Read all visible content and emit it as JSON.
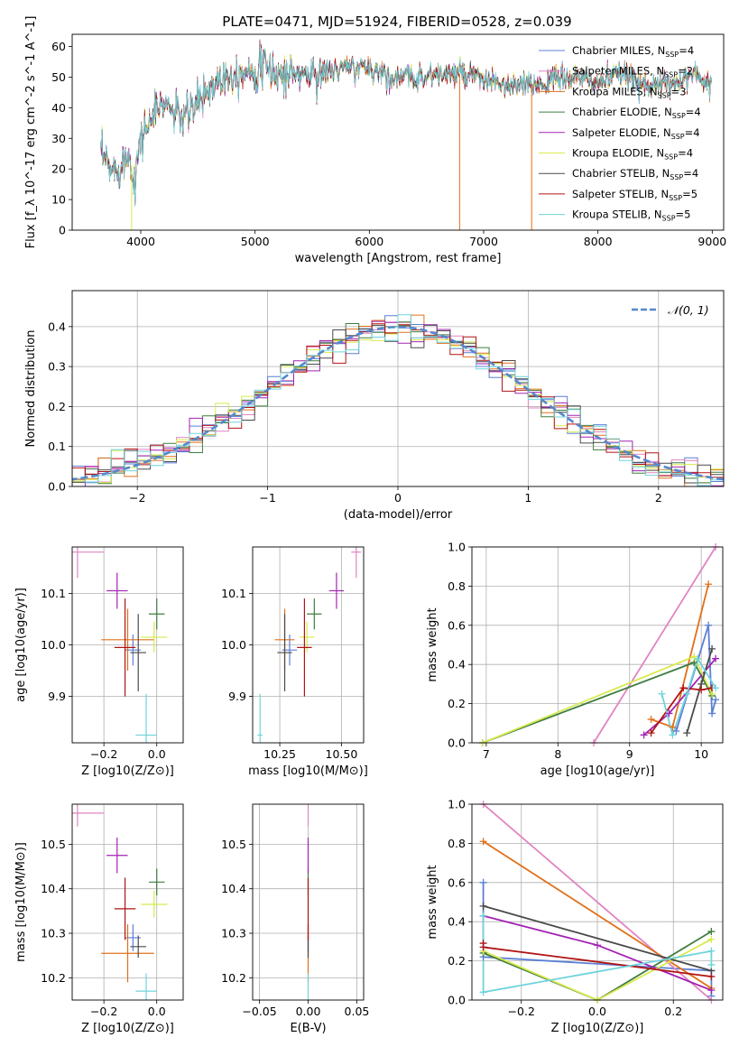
{
  "figure": {
    "title": "PLATE=0471, MJD=51924, FIBERID=0528, z=0.039"
  },
  "colors": {
    "Chabrier MILES": "#5b7fd6",
    "Salpeter MILES": "#e184c1",
    "Kroupa MILES": "#e0701a",
    "Chabrier ELODIE": "#3f7d3f",
    "Salpeter ELODIE": "#a322b4",
    "Kroupa ELODIE": "#d8ea4e",
    "Chabrier STELIB": "#4a4a4a",
    "Salpeter STELIB": "#b01414",
    "Kroupa STELIB": "#6fd3dc"
  },
  "chart_data": [
    {
      "id": "spectrum",
      "type": "line",
      "title": "PLATE=0471, MJD=51924, FIBERID=0528, z=0.039",
      "xlabel": "wavelength [Angstrom, rest frame]",
      "ylabel": "Flux [f_λ 10^-17 erg cm^-2 s^-1 A^-1]",
      "xlim": [
        3400,
        9100
      ],
      "ylim": [
        0,
        64
      ],
      "xticks": [
        4000,
        5000,
        6000,
        7000,
        8000,
        9000
      ],
      "yticks": [
        0,
        10,
        20,
        30,
        40,
        50,
        60
      ],
      "grid": false,
      "legend_position": "upper right",
      "legend": [
        {
          "model": "Chabrier MILES",
          "nssp": "4"
        },
        {
          "model": "Salpeter MILES",
          "nssp": "2"
        },
        {
          "model": "Kroupa MILES",
          "nssp": "3"
        },
        {
          "model": "Chabrier ELODIE",
          "nssp": "4"
        },
        {
          "model": "Salpeter ELODIE",
          "nssp": "4"
        },
        {
          "model": "Kroupa ELODIE",
          "nssp": "4"
        },
        {
          "model": "Chabrier STELIB",
          "nssp": "4"
        },
        {
          "model": "Salpeter STELIB",
          "nssp": "5"
        },
        {
          "model": "Kroupa STELIB",
          "nssp": "5"
        }
      ],
      "continuum": {
        "x": [
          3650,
          3700,
          3750,
          3800,
          3850,
          3900,
          3950,
          4000,
          4100,
          4200,
          4300,
          4400,
          4500,
          4700,
          4900,
          5100,
          5200,
          5500,
          5800,
          6000,
          6200,
          6400,
          6600,
          6800,
          7000,
          7100,
          7200,
          7400,
          7600,
          7800,
          8000,
          8200,
          8400,
          8600,
          8800,
          9000
        ],
        "y": [
          25,
          22,
          19,
          21,
          23,
          24,
          17,
          30,
          37,
          42,
          38,
          37,
          42,
          50,
          52,
          53,
          51,
          51,
          53,
          53,
          50,
          50,
          51,
          51,
          49,
          48,
          47,
          47,
          49,
          50,
          48,
          51,
          48,
          47,
          51,
          48
        ]
      },
      "dropouts": [
        {
          "model": "Kroupa ELODIE",
          "x": 3920,
          "y_to": 0
        },
        {
          "model": "Kroupa MILES",
          "x": 6790,
          "y_to": 0
        },
        {
          "model": "Kroupa MILES",
          "x": 7420,
          "y_to": 0
        }
      ]
    },
    {
      "id": "residual-hist",
      "type": "line",
      "xlabel": "(data-model)/error",
      "ylabel": "Normed distribution",
      "xlim": [
        -2.5,
        2.5
      ],
      "ylim": [
        0,
        0.49
      ],
      "xticks": [
        -2,
        -1,
        0,
        1,
        2
      ],
      "yticks": [
        0.0,
        0.1,
        0.2,
        0.3,
        0.4
      ],
      "grid": true,
      "legend_position": "upper right",
      "legend": [
        {
          "label": "𝒩(0, 1)",
          "style": "dashed",
          "color": "#5588cc"
        }
      ],
      "bin_width": 0.1,
      "reference_curve": "normal(0,1) pdf"
    },
    {
      "id": "age-vs-Z",
      "type": "scatter",
      "xlabel": "Z [log10(Z/Z⊙)]",
      "ylabel": "age  [log10(age/yr)]",
      "xlim": [
        -0.32,
        0.1
      ],
      "ylim": [
        9.81,
        10.19
      ],
      "xticks": [
        -0.2,
        0.0
      ],
      "yticks": [
        9.9,
        10.0,
        10.1
      ],
      "grid": true,
      "points": [
        {
          "model": "Chabrier MILES",
          "x": -0.09,
          "y": 9.99,
          "xerr": 0.03,
          "yerr": 0.03
        },
        {
          "model": "Salpeter MILES",
          "x": -0.3,
          "y": 10.18,
          "xerr": 0.1,
          "yerr": 0.05
        },
        {
          "model": "Kroupa MILES",
          "x": -0.11,
          "y": 10.01,
          "xerr": 0.1,
          "yerr": 0.06
        },
        {
          "model": "Chabrier ELODIE",
          "x": 0.0,
          "y": 10.06,
          "xerr": 0.03,
          "yerr": 0.03
        },
        {
          "model": "Salpeter ELODIE",
          "x": -0.15,
          "y": 10.105,
          "xerr": 0.04,
          "yerr": 0.035
        },
        {
          "model": "Kroupa ELODIE",
          "x": -0.01,
          "y": 10.015,
          "xerr": 0.05,
          "yerr": 0.03
        },
        {
          "model": "Chabrier STELIB",
          "x": -0.07,
          "y": 9.985,
          "xerr": 0.03,
          "yerr": 0.075
        },
        {
          "model": "Salpeter STELIB",
          "x": -0.12,
          "y": 9.995,
          "xerr": 0.04,
          "yerr": 0.095
        },
        {
          "model": "Kroupa STELIB",
          "x": -0.04,
          "y": 9.825,
          "xerr": 0.04,
          "yerr": 0.08
        }
      ]
    },
    {
      "id": "age-vs-mass",
      "type": "scatter",
      "xlabel": "mass [log10(M/M⊙)]",
      "ylabel": "",
      "xlim": [
        10.14,
        10.59
      ],
      "ylim": [
        9.81,
        10.19
      ],
      "xticks": [
        10.25,
        10.5
      ],
      "yticks": [
        9.9,
        10.0,
        10.1
      ],
      "grid": true,
      "points": [
        {
          "model": "Chabrier MILES",
          "x": 10.29,
          "y": 9.99,
          "xerr": 0.03,
          "yerr": 0.03
        },
        {
          "model": "Salpeter MILES",
          "x": 10.56,
          "y": 10.18,
          "xerr": 0.02,
          "yerr": 0.05
        },
        {
          "model": "Kroupa MILES",
          "x": 10.27,
          "y": 10.01,
          "xerr": 0.04,
          "yerr": 0.06
        },
        {
          "model": "Chabrier ELODIE",
          "x": 10.39,
          "y": 10.06,
          "xerr": 0.03,
          "yerr": 0.03
        },
        {
          "model": "Salpeter ELODIE",
          "x": 10.48,
          "y": 10.105,
          "xerr": 0.03,
          "yerr": 0.035
        },
        {
          "model": "Kroupa ELODIE",
          "x": 10.36,
          "y": 10.015,
          "xerr": 0.03,
          "yerr": 0.03
        },
        {
          "model": "Chabrier STELIB",
          "x": 10.27,
          "y": 9.985,
          "xerr": 0.03,
          "yerr": 0.075
        },
        {
          "model": "Salpeter STELIB",
          "x": 10.35,
          "y": 9.995,
          "xerr": 0.03,
          "yerr": 0.095
        },
        {
          "model": "Kroupa STELIB",
          "x": 10.17,
          "y": 9.825,
          "xerr": 0.01,
          "yerr": 0.08
        }
      ]
    },
    {
      "id": "weight-vs-age",
      "type": "line",
      "xlabel": "age  [log10(age/yr)]",
      "ylabel": "mass weight",
      "xlim": [
        6.8,
        10.3
      ],
      "ylim": [
        0,
        1.0
      ],
      "xticks": [
        7,
        8,
        9,
        10
      ],
      "yticks": [
        0.0,
        0.2,
        0.4,
        0.6,
        0.8,
        1.0
      ],
      "grid": true,
      "series": [
        {
          "model": "Chabrier MILES",
          "x": [
            9.65,
            10.1,
            10.15,
            10.2
          ],
          "y": [
            0.06,
            0.6,
            0.15,
            0.22
          ]
        },
        {
          "model": "Salpeter MILES",
          "x": [
            8.5,
            10.2
          ],
          "y": [
            0.0,
            1.0
          ]
        },
        {
          "model": "Kroupa MILES",
          "x": [
            9.3,
            9.6,
            10.1
          ],
          "y": [
            0.12,
            0.08,
            0.81
          ]
        },
        {
          "model": "Chabrier ELODIE",
          "x": [
            6.95,
            9.9,
            10.15
          ],
          "y": [
            0.0,
            0.41,
            0.24
          ]
        },
        {
          "model": "Salpeter ELODIE",
          "x": [
            9.2,
            9.55,
            10.2
          ],
          "y": [
            0.04,
            0.15,
            0.43
          ]
        },
        {
          "model": "Kroupa ELODIE",
          "x": [
            6.95,
            9.9,
            10.15
          ],
          "y": [
            0.0,
            0.44,
            0.25
          ]
        },
        {
          "model": "Chabrier STELIB",
          "x": [
            9.8,
            10.0,
            10.15
          ],
          "y": [
            0.05,
            0.3,
            0.48
          ]
        },
        {
          "model": "Salpeter STELIB",
          "x": [
            9.3,
            9.75,
            10.0,
            10.15
          ],
          "y": [
            0.05,
            0.28,
            0.27,
            0.28
          ]
        },
        {
          "model": "Kroupa STELIB",
          "x": [
            9.45,
            9.6,
            9.8,
            9.95,
            10.2
          ],
          "y": [
            0.25,
            0.04,
            0.25,
            0.43,
            0.28
          ]
        }
      ]
    },
    {
      "id": "mass-vs-Z",
      "type": "scatter",
      "xlabel": "Z [log10(Z/Z⊙)]",
      "ylabel": "mass [log10(M/M⊙)]",
      "xlim": [
        -0.32,
        0.1
      ],
      "ylim": [
        10.15,
        10.59
      ],
      "xticks": [
        -0.2,
        0.0
      ],
      "yticks": [
        10.2,
        10.3,
        10.4,
        10.5
      ],
      "grid": true,
      "points": [
        {
          "model": "Chabrier MILES",
          "x": -0.09,
          "y": 10.29,
          "xerr": 0.03,
          "yerr": 0.03
        },
        {
          "model": "Salpeter MILES",
          "x": -0.3,
          "y": 10.57,
          "xerr": 0.1,
          "yerr": 0.03
        },
        {
          "model": "Kroupa MILES",
          "x": -0.11,
          "y": 10.255,
          "xerr": 0.1,
          "yerr": 0.065
        },
        {
          "model": "Chabrier ELODIE",
          "x": 0.0,
          "y": 10.415,
          "xerr": 0.03,
          "yerr": 0.03
        },
        {
          "model": "Salpeter ELODIE",
          "x": -0.15,
          "y": 10.475,
          "xerr": 0.04,
          "yerr": 0.04
        },
        {
          "model": "Kroupa ELODIE",
          "x": -0.01,
          "y": 10.365,
          "xerr": 0.05,
          "yerr": 0.03
        },
        {
          "model": "Chabrier STELIB",
          "x": -0.07,
          "y": 10.27,
          "xerr": 0.03,
          "yerr": 0.025
        },
        {
          "model": "Salpeter STELIB",
          "x": -0.12,
          "y": 10.355,
          "xerr": 0.04,
          "yerr": 0.07
        },
        {
          "model": "Kroupa STELIB",
          "x": -0.04,
          "y": 10.17,
          "xerr": 0.04,
          "yerr": 0.04
        }
      ]
    },
    {
      "id": "mass-vs-EBV",
      "type": "scatter",
      "xlabel": "E(B-V)",
      "ylabel": "",
      "xlim": [
        -0.057,
        0.057
      ],
      "ylim": [
        10.15,
        10.59
      ],
      "xticks": [
        -0.05,
        0.0,
        0.05
      ],
      "yticks": [
        10.2,
        10.3,
        10.4,
        10.5
      ],
      "grid": true,
      "points": [
        {
          "model": "Chabrier MILES",
          "x": 0.0,
          "y": 10.29,
          "xerr": 0,
          "yerr": 0.03
        },
        {
          "model": "Salpeter MILES",
          "x": 0.0,
          "y": 10.57,
          "xerr": 0,
          "yerr": 0.03
        },
        {
          "model": "Kroupa MILES",
          "x": 0.0,
          "y": 10.255,
          "xerr": 0,
          "yerr": 0.065
        },
        {
          "model": "Chabrier ELODIE",
          "x": 0.0,
          "y": 10.415,
          "xerr": 0,
          "yerr": 0.03
        },
        {
          "model": "Salpeter ELODIE",
          "x": 0.0,
          "y": 10.475,
          "xerr": 0,
          "yerr": 0.04
        },
        {
          "model": "Kroupa ELODIE",
          "x": 0.0,
          "y": 10.365,
          "xerr": 0,
          "yerr": 0.03
        },
        {
          "model": "Chabrier STELIB",
          "x": 0.0,
          "y": 10.27,
          "xerr": 0,
          "yerr": 0.025
        },
        {
          "model": "Salpeter STELIB",
          "x": 0.0,
          "y": 10.355,
          "xerr": 0,
          "yerr": 0.07
        },
        {
          "model": "Kroupa STELIB",
          "x": 0.0,
          "y": 10.17,
          "xerr": 0,
          "yerr": 0.04
        }
      ]
    },
    {
      "id": "weight-vs-Z",
      "type": "line",
      "xlabel": "Z [log10(Z/Z⊙)]",
      "ylabel": "mass weight",
      "xlim": [
        -0.33,
        0.33
      ],
      "ylim": [
        0,
        1.0
      ],
      "xticks": [
        -0.2,
        0.0,
        0.2
      ],
      "yticks": [
        0.0,
        0.2,
        0.4,
        0.6,
        0.8,
        1.0
      ],
      "grid": true,
      "series": [
        {
          "model": "Chabrier MILES",
          "x": [
            -0.3,
            -0.3,
            0.3,
            0.3
          ],
          "y": [
            0.6,
            0.22,
            0.15,
            0.02
          ]
        },
        {
          "model": "Salpeter MILES",
          "x": [
            -0.3,
            0.3
          ],
          "y": [
            1.0,
            0.0
          ]
        },
        {
          "model": "Kroupa MILES",
          "x": [
            -0.3,
            0.3
          ],
          "y": [
            0.81,
            0.06
          ]
        },
        {
          "model": "Chabrier ELODIE",
          "x": [
            -0.3,
            0.0,
            0.3
          ],
          "y": [
            0.24,
            0.0,
            0.35
          ]
        },
        {
          "model": "Salpeter ELODIE",
          "x": [
            -0.3,
            0.0,
            0.3
          ],
          "y": [
            0.43,
            0.28,
            0.05
          ]
        },
        {
          "model": "Kroupa ELODIE",
          "x": [
            -0.3,
            0.0,
            0.3
          ],
          "y": [
            0.25,
            0.0,
            0.31
          ]
        },
        {
          "model": "Chabrier STELIB",
          "x": [
            -0.3,
            0.3
          ],
          "y": [
            0.48,
            0.15
          ]
        },
        {
          "model": "Salpeter STELIB",
          "x": [
            -0.3,
            -0.3,
            0.3
          ],
          "y": [
            0.29,
            0.27,
            0.12
          ]
        },
        {
          "model": "Kroupa STELIB",
          "x": [
            -0.3,
            -0.3,
            0.3,
            0.3
          ],
          "y": [
            0.43,
            0.04,
            0.25,
            0.18
          ]
        }
      ]
    }
  ]
}
